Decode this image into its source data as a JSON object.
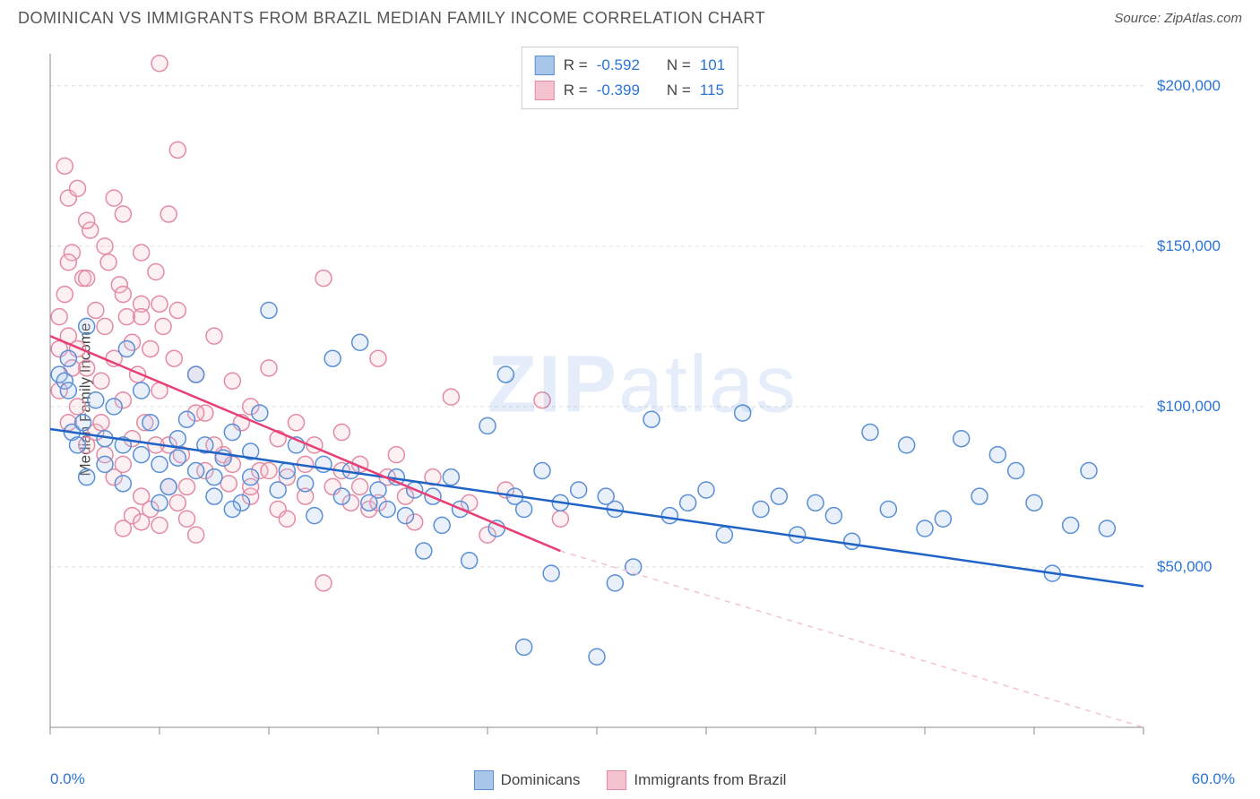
{
  "header": {
    "title": "DOMINICAN VS IMMIGRANTS FROM BRAZIL MEDIAN FAMILY INCOME CORRELATION CHART",
    "source_prefix": "Source: ",
    "source_name": "ZipAtlas.com"
  },
  "watermark": {
    "zip": "ZIP",
    "atlas": "atlas"
  },
  "chart": {
    "type": "scatter",
    "ylabel": "Median Family Income",
    "xlim": [
      0,
      60
    ],
    "ylim": [
      0,
      210000
    ],
    "x_min_label": "0.0%",
    "x_max_label": "60.0%",
    "y_ticks": [
      50000,
      100000,
      150000,
      200000
    ],
    "y_tick_labels": [
      "$50,000",
      "$100,000",
      "$150,000",
      "$200,000"
    ],
    "x_ticks": [
      0,
      6,
      12,
      18,
      24,
      30,
      36,
      42,
      48,
      54,
      60
    ],
    "background_color": "#ffffff",
    "grid_color": "#dddddd",
    "axis_color": "#888888",
    "tick_label_color": "#2b74d6",
    "marker_radius": 9,
    "marker_stroke_width": 1.5,
    "fill_opacity": 0.25,
    "line_width": 2.5,
    "series": [
      {
        "name": "Dominicans",
        "color_stroke": "#5a8fd6",
        "color_fill": "#a8c5ea",
        "trend_color": "#1f63c6",
        "R": "-0.592",
        "N": "101",
        "trend": {
          "x1": 0,
          "y1": 93000,
          "x2": 60,
          "y2": 44000,
          "extrapolate_dash": false
        },
        "points": [
          [
            0.5,
            110000
          ],
          [
            0.8,
            108000
          ],
          [
            1,
            105000
          ],
          [
            1.2,
            92000
          ],
          [
            1.5,
            88000
          ],
          [
            1.8,
            95000
          ],
          [
            2,
            78000
          ],
          [
            2.5,
            102000
          ],
          [
            3,
            90000
          ],
          [
            3.5,
            100000
          ],
          [
            4,
            88000
          ],
          [
            4.2,
            118000
          ],
          [
            5,
            85000
          ],
          [
            5.5,
            95000
          ],
          [
            6,
            82000
          ],
          [
            6.5,
            75000
          ],
          [
            7,
            90000
          ],
          [
            7.5,
            96000
          ],
          [
            8,
            80000
          ],
          [
            8.5,
            88000
          ],
          [
            9,
            78000
          ],
          [
            9.5,
            84000
          ],
          [
            10,
            92000
          ],
          [
            10.5,
            70000
          ],
          [
            11,
            86000
          ],
          [
            11.5,
            98000
          ],
          [
            12,
            130000
          ],
          [
            12.5,
            74000
          ],
          [
            13,
            80000
          ],
          [
            13.5,
            88000
          ],
          [
            14,
            76000
          ],
          [
            14.5,
            66000
          ],
          [
            15,
            82000
          ],
          [
            15.5,
            115000
          ],
          [
            16,
            72000
          ],
          [
            16.5,
            80000
          ],
          [
            17,
            120000
          ],
          [
            17.5,
            70000
          ],
          [
            18,
            74000
          ],
          [
            18.5,
            68000
          ],
          [
            19,
            78000
          ],
          [
            19.5,
            66000
          ],
          [
            20,
            74000
          ],
          [
            20.5,
            55000
          ],
          [
            21,
            72000
          ],
          [
            21.5,
            63000
          ],
          [
            22,
            78000
          ],
          [
            22.5,
            68000
          ],
          [
            23,
            52000
          ],
          [
            24,
            94000
          ],
          [
            24.5,
            62000
          ],
          [
            25,
            110000
          ],
          [
            25.5,
            72000
          ],
          [
            26,
            68000
          ],
          [
            27,
            80000
          ],
          [
            27.5,
            48000
          ],
          [
            28,
            70000
          ],
          [
            29,
            74000
          ],
          [
            30,
            22000
          ],
          [
            30.5,
            72000
          ],
          [
            31,
            68000
          ],
          [
            32,
            50000
          ],
          [
            33,
            96000
          ],
          [
            34,
            66000
          ],
          [
            35,
            70000
          ],
          [
            36,
            74000
          ],
          [
            37,
            60000
          ],
          [
            38,
            98000
          ],
          [
            39,
            68000
          ],
          [
            40,
            72000
          ],
          [
            41,
            60000
          ],
          [
            42,
            70000
          ],
          [
            43,
            66000
          ],
          [
            44,
            58000
          ],
          [
            45,
            92000
          ],
          [
            46,
            68000
          ],
          [
            47,
            88000
          ],
          [
            48,
            62000
          ],
          [
            49,
            65000
          ],
          [
            50,
            90000
          ],
          [
            51,
            72000
          ],
          [
            52,
            85000
          ],
          [
            53,
            80000
          ],
          [
            54,
            70000
          ],
          [
            55,
            48000
          ],
          [
            56,
            63000
          ],
          [
            57,
            80000
          ],
          [
            58,
            62000
          ],
          [
            1,
            115000
          ],
          [
            2,
            125000
          ],
          [
            3,
            82000
          ],
          [
            4,
            76000
          ],
          [
            5,
            105000
          ],
          [
            6,
            70000
          ],
          [
            7,
            84000
          ],
          [
            8,
            110000
          ],
          [
            9,
            72000
          ],
          [
            10,
            68000
          ],
          [
            11,
            78000
          ],
          [
            26,
            25000
          ],
          [
            31,
            45000
          ]
        ]
      },
      {
        "name": "Immigrants from Brazil",
        "color_stroke": "#e48ba3",
        "color_fill": "#f5c2d0",
        "trend_color": "#e83f74",
        "R": "-0.399",
        "N": "115",
        "trend": {
          "x1": 0,
          "y1": 122000,
          "x2": 28,
          "y2": 55000,
          "extrapolate_dash": true,
          "x2_dash": 60,
          "y2_dash": 0
        },
        "points": [
          [
            0.5,
            128000
          ],
          [
            0.8,
            135000
          ],
          [
            1,
            122000
          ],
          [
            1.2,
            148000
          ],
          [
            1.5,
            118000
          ],
          [
            1.8,
            140000
          ],
          [
            2,
            112000
          ],
          [
            2.2,
            155000
          ],
          [
            2.5,
            130000
          ],
          [
            2.8,
            108000
          ],
          [
            3,
            125000
          ],
          [
            3.2,
            145000
          ],
          [
            3.5,
            115000
          ],
          [
            3.8,
            138000
          ],
          [
            4,
            102000
          ],
          [
            4.2,
            128000
          ],
          [
            4.5,
            120000
          ],
          [
            4.8,
            110000
          ],
          [
            5,
            132000
          ],
          [
            5.2,
            95000
          ],
          [
            5.5,
            118000
          ],
          [
            5.8,
            142000
          ],
          [
            6,
            105000
          ],
          [
            6.2,
            125000
          ],
          [
            6.5,
            88000
          ],
          [
            6.8,
            115000
          ],
          [
            7,
            130000
          ],
          [
            7.5,
            75000
          ],
          [
            8,
            110000
          ],
          [
            8.5,
            98000
          ],
          [
            9,
            122000
          ],
          [
            9.5,
            85000
          ],
          [
            10,
            108000
          ],
          [
            10.5,
            95000
          ],
          [
            11,
            100000
          ],
          [
            11.5,
            80000
          ],
          [
            12,
            112000
          ],
          [
            12.5,
            90000
          ],
          [
            13,
            78000
          ],
          [
            13.5,
            95000
          ],
          [
            14,
            72000
          ],
          [
            14.5,
            88000
          ],
          [
            15,
            140000
          ],
          [
            15.5,
            75000
          ],
          [
            16,
            92000
          ],
          [
            16.5,
            70000
          ],
          [
            17,
            82000
          ],
          [
            17.5,
            68000
          ],
          [
            18,
            115000
          ],
          [
            18.5,
            78000
          ],
          [
            19,
            85000
          ],
          [
            19.5,
            72000
          ],
          [
            20,
            64000
          ],
          [
            21,
            78000
          ],
          [
            22,
            103000
          ],
          [
            23,
            70000
          ],
          [
            24,
            60000
          ],
          [
            25,
            74000
          ],
          [
            27,
            102000
          ],
          [
            28,
            65000
          ],
          [
            0.5,
            105000
          ],
          [
            1,
            95000
          ],
          [
            1.5,
            100000
          ],
          [
            2,
            88000
          ],
          [
            2.5,
            92000
          ],
          [
            3,
            85000
          ],
          [
            3.5,
            78000
          ],
          [
            4,
            82000
          ],
          [
            4.5,
            66000
          ],
          [
            5,
            72000
          ],
          [
            5.5,
            68000
          ],
          [
            6,
            63000
          ],
          [
            6.5,
            75000
          ],
          [
            7,
            70000
          ],
          [
            7.5,
            65000
          ],
          [
            8,
            60000
          ],
          [
            1,
            165000
          ],
          [
            2,
            158000
          ],
          [
            3,
            150000
          ],
          [
            4,
            160000
          ],
          [
            5,
            148000
          ],
          [
            0.8,
            175000
          ],
          [
            1.5,
            168000
          ],
          [
            3.5,
            165000
          ],
          [
            6,
            207000
          ],
          [
            7,
            180000
          ],
          [
            1,
            145000
          ],
          [
            2,
            140000
          ],
          [
            4,
            135000
          ],
          [
            5,
            128000
          ],
          [
            6,
            132000
          ],
          [
            0.5,
            118000
          ],
          [
            1.2,
            112000
          ],
          [
            2.8,
            95000
          ],
          [
            4.5,
            90000
          ],
          [
            5.8,
            88000
          ],
          [
            7.2,
            85000
          ],
          [
            8.5,
            80000
          ],
          [
            9.8,
            76000
          ],
          [
            11,
            72000
          ],
          [
            12.5,
            68000
          ],
          [
            6.5,
            160000
          ],
          [
            8,
            98000
          ],
          [
            9,
            88000
          ],
          [
            10,
            82000
          ],
          [
            11,
            75000
          ],
          [
            12,
            80000
          ],
          [
            13,
            65000
          ],
          [
            14,
            82000
          ],
          [
            15,
            45000
          ],
          [
            16,
            80000
          ],
          [
            17,
            75000
          ],
          [
            18,
            70000
          ],
          [
            4,
            62000
          ],
          [
            5,
            64000
          ]
        ]
      }
    ],
    "legend": {
      "label_R": "R =",
      "label_N": "N ="
    },
    "bottom_legend_labels": [
      "Dominicans",
      "Immigrants from Brazil"
    ]
  }
}
